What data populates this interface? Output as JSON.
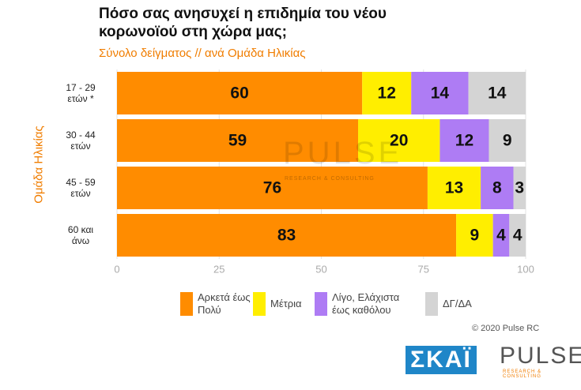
{
  "chart_data": {
    "type": "stacked-bar-horizontal",
    "title": "Πόσο σας ανησυχεί η επιδημία του νέου κορωνοϊού στη χώρα μας;",
    "subtitle": "Σύνολο δείγματος // ανά Ομάδα Ηλικίας",
    "y_label": "Ομάδα Ηλικίας",
    "categories": [
      "17 - 29 ετών *",
      "30 - 44 ετών",
      "45 - 59 ετών",
      "60 και άνω"
    ],
    "series": [
      {
        "name": "Αρκετά έως Πολύ",
        "color": "#ff8c00",
        "values": [
          60,
          59,
          76,
          83
        ]
      },
      {
        "name": "Μέτρια",
        "color": "#ffee00",
        "values": [
          12,
          20,
          13,
          9
        ]
      },
      {
        "name": "Λίγο, Ελάχιστα έως καθόλου",
        "color": "#ae7cf4",
        "values": [
          14,
          12,
          8,
          4
        ]
      },
      {
        "name": "ΔΓ/ΔΑ",
        "color": "#d4d4d4",
        "values": [
          14,
          9,
          3,
          4
        ]
      }
    ],
    "xlim": [
      0,
      100
    ],
    "xticks": [
      0,
      25,
      50,
      75,
      100
    ],
    "grid": true,
    "copyright": "© 2020 Pulse RC",
    "logos": [
      "ΣΚΑΪ",
      "PULSE",
      "RESEARCH & CONSULTING"
    ]
  }
}
